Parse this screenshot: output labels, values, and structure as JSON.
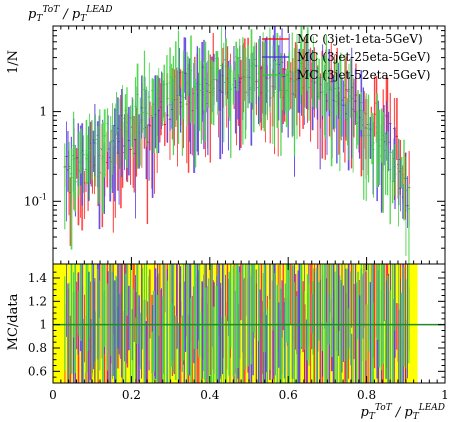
{
  "chart_data": {
    "type": "line",
    "title": "p_T^{ToT} / p_T^{LEAD}",
    "title_parts": {
      "base": "p",
      "sub": "T",
      "sup": "ToT",
      "sep": " / ",
      "base2": "p",
      "sub2": "T",
      "sup2": "LEAD"
    },
    "xlabel_parts": {
      "base": "p",
      "sub": "T",
      "sup": "ToT",
      "sep": " / ",
      "base2": "p",
      "sub2": "T",
      "sup2": "LEAD"
    },
    "ylabel": "1/N",
    "ratio_ylabel": "MC/data",
    "xlim": [
      0,
      1
    ],
    "ylim": [
      0.02,
      9
    ],
    "yscale": "log",
    "ratio_ylim": [
      0.5,
      1.52
    ],
    "x_ticks": [
      "0",
      "0.2",
      "0.4",
      "0.6",
      "0.8",
      "1"
    ],
    "y_ticks_main": [
      {
        "value": 1,
        "label": "1"
      },
      {
        "value": 0.1,
        "label": "10^{-1}"
      }
    ],
    "y_ticks_ratio": [
      "0.6",
      "0.8",
      "1",
      "1.2",
      "1.4"
    ],
    "ratio_band": {
      "color": "#ffff00",
      "x_range": [
        0.0,
        0.93
      ]
    },
    "ratio_reference": {
      "value": 1,
      "color": "#228b22"
    },
    "legend_position": "top-right",
    "series": [
      {
        "name": "MC (3jet-1eta-5GeV)",
        "color": "#ff0000",
        "band_color": "#ff7a7a",
        "x": [
          0.03,
          0.08,
          0.13,
          0.18,
          0.23,
          0.28,
          0.33,
          0.38,
          0.43,
          0.48,
          0.53,
          0.58,
          0.63,
          0.68,
          0.72,
          0.76,
          0.8,
          0.84,
          0.88,
          0.91
        ],
        "values": [
          0.18,
          0.22,
          0.3,
          0.45,
          0.6,
          0.95,
          1.4,
          1.7,
          1.9,
          2.0,
          2.1,
          2.2,
          2.4,
          2.3,
          1.9,
          1.5,
          1.1,
          0.7,
          0.35,
          0.18
        ],
        "ratio": [
          0.9,
          1.0,
          0.95,
          1.05,
          1.0,
          1.1,
          0.95,
          1.0,
          1.05,
          0.98,
          1.02,
          1.1,
          0.95,
          1.0,
          1.05,
          0.9,
          1.1,
          1.0,
          0.95,
          1.0
        ]
      },
      {
        "name": "MC (3jet-25eta-5GeV)",
        "color": "#4b2bd9",
        "band_color": "#7d66e6",
        "x": [
          0.03,
          0.08,
          0.13,
          0.18,
          0.23,
          0.28,
          0.33,
          0.38,
          0.43,
          0.48,
          0.53,
          0.58,
          0.63,
          0.68,
          0.72,
          0.76,
          0.8,
          0.84,
          0.88,
          0.91
        ],
        "values": [
          0.22,
          0.28,
          0.4,
          0.6,
          0.85,
          1.3,
          1.8,
          2.2,
          2.4,
          2.5,
          2.5,
          2.4,
          2.3,
          2.1,
          1.7,
          1.2,
          0.8,
          0.45,
          0.22,
          0.1
        ],
        "ratio": [
          1.05,
          0.95,
          1.0,
          1.1,
          0.9,
          1.0,
          1.05,
          0.95,
          1.0,
          1.1,
          0.95,
          1.0,
          0.9,
          1.05,
          1.0,
          0.95,
          1.0,
          1.05,
          0.9,
          1.0
        ]
      },
      {
        "name": "MC (3jet-52eta-5GeV)",
        "color": "#2ecc2e",
        "band_color": "#6ee06e",
        "x": [
          0.03,
          0.08,
          0.13,
          0.18,
          0.23,
          0.28,
          0.33,
          0.38,
          0.43,
          0.48,
          0.53,
          0.58,
          0.63,
          0.68,
          0.72,
          0.76,
          0.8,
          0.84,
          0.88,
          0.91
        ],
        "values": [
          0.25,
          0.35,
          0.5,
          0.75,
          1.1,
          1.6,
          2.1,
          2.5,
          2.7,
          2.8,
          2.7,
          2.5,
          2.3,
          2.0,
          1.6,
          1.1,
          0.7,
          0.38,
          0.18,
          0.08
        ],
        "ratio": [
          1.0,
          1.1,
          0.95,
          1.0,
          1.05,
          0.9,
          1.0,
          1.1,
          0.95,
          1.0,
          1.05,
          0.95,
          1.1,
          0.9,
          1.0,
          1.05,
          0.95,
          1.0,
          1.1,
          0.95
        ]
      }
    ]
  }
}
